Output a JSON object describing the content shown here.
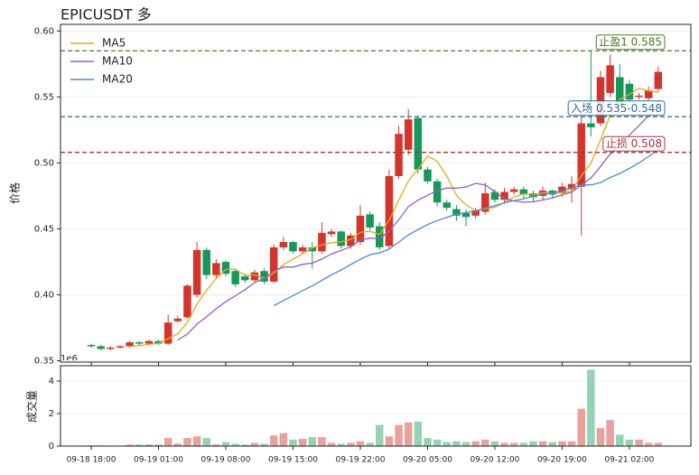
{
  "chart_data": {
    "type": "candlestick",
    "title": "EPICUSDT 多",
    "ylabel": "价格",
    "volume_ylabel": "成交量",
    "volume_offset": "1e6",
    "categories": [
      "09-18 18:00",
      null,
      null,
      null,
      null,
      null,
      null,
      "09-19 01:00",
      null,
      null,
      null,
      null,
      null,
      null,
      "09-19 08:00",
      null,
      null,
      null,
      null,
      null,
      null,
      "09-19 15:00",
      null,
      null,
      null,
      null,
      null,
      null,
      "09-19 22:00",
      null,
      null,
      null,
      null,
      null,
      null,
      "09-20 05:00",
      null,
      null,
      null,
      null,
      null,
      null,
      "09-20 12:00",
      null,
      null,
      null,
      null,
      null,
      null,
      "09-20 19:00",
      null,
      null,
      null,
      null,
      null,
      null,
      "09-21 02:00",
      null,
      null,
      null
    ],
    "xlim": [
      -3.2,
      62.4
    ],
    "open": [
      0.362,
      0.361,
      0.359,
      0.36,
      0.361,
      0.364,
      0.363,
      0.365,
      0.363,
      0.38,
      0.383,
      0.4,
      0.434,
      0.415,
      0.425,
      0.418,
      0.414,
      0.411,
      0.418,
      0.41,
      0.436,
      0.44,
      0.433,
      0.436,
      0.433,
      0.446,
      0.448,
      0.437,
      0.44,
      0.461,
      0.452,
      0.437,
      0.49,
      0.51,
      0.534,
      0.495,
      0.486,
      0.47,
      0.465,
      0.462,
      0.46,
      0.463,
      0.478,
      0.472,
      0.478,
      0.48,
      0.477,
      0.475,
      0.479,
      0.477,
      0.48,
      0.482,
      0.53,
      0.53,
      0.553,
      0.565,
      0.56,
      0.55,
      0.549,
      0.556
    ],
    "high": [
      0.363,
      0.362,
      0.361,
      0.362,
      0.365,
      0.365,
      0.366,
      0.366,
      0.385,
      0.384,
      0.408,
      0.44,
      0.436,
      0.427,
      0.426,
      0.42,
      0.416,
      0.419,
      0.42,
      0.438,
      0.444,
      0.441,
      0.438,
      0.44,
      0.455,
      0.45,
      0.449,
      0.447,
      0.468,
      0.463,
      0.455,
      0.495,
      0.528,
      0.541,
      0.536,
      0.497,
      0.488,
      0.472,
      0.468,
      0.465,
      0.466,
      0.485,
      0.48,
      0.481,
      0.482,
      0.482,
      0.479,
      0.482,
      0.48,
      0.485,
      0.49,
      0.54,
      0.585,
      0.57,
      0.582,
      0.575,
      0.563,
      0.553,
      0.558,
      0.573
    ],
    "low": [
      0.36,
      0.358,
      0.358,
      0.359,
      0.36,
      0.361,
      0.362,
      0.362,
      0.362,
      0.379,
      0.382,
      0.398,
      0.412,
      0.412,
      0.414,
      0.406,
      0.409,
      0.409,
      0.408,
      0.409,
      0.434,
      0.431,
      0.431,
      0.42,
      0.431,
      0.444,
      0.435,
      0.435,
      0.438,
      0.449,
      0.434,
      0.435,
      0.488,
      0.506,
      0.492,
      0.484,
      0.467,
      0.464,
      0.456,
      0.452,
      0.458,
      0.461,
      0.47,
      0.469,
      0.476,
      0.473,
      0.47,
      0.472,
      0.473,
      0.474,
      0.47,
      0.445,
      0.52,
      0.528,
      0.55,
      0.54,
      0.545,
      0.548,
      0.547,
      0.554
    ],
    "close": [
      0.361,
      0.359,
      0.36,
      0.361,
      0.364,
      0.363,
      0.365,
      0.363,
      0.379,
      0.382,
      0.407,
      0.434,
      0.415,
      0.424,
      0.416,
      0.408,
      0.411,
      0.417,
      0.41,
      0.436,
      0.44,
      0.433,
      0.436,
      0.433,
      0.447,
      0.448,
      0.437,
      0.445,
      0.46,
      0.451,
      0.436,
      0.49,
      0.522,
      0.533,
      0.495,
      0.486,
      0.47,
      0.466,
      0.46,
      0.459,
      0.464,
      0.477,
      0.472,
      0.478,
      0.48,
      0.476,
      0.474,
      0.479,
      0.476,
      0.482,
      0.484,
      0.53,
      0.527,
      0.565,
      0.574,
      0.545,
      0.548,
      0.551,
      0.555,
      0.569
    ],
    "volume": [
      0.05,
      0.05,
      0.02,
      0.02,
      0.1,
      0.1,
      0.1,
      0.1,
      0.5,
      0.15,
      0.5,
      0.6,
      0.5,
      0.1,
      0.25,
      0.15,
      0.1,
      0.2,
      0.15,
      0.65,
      0.8,
      0.4,
      0.45,
      0.55,
      0.55,
      0.2,
      0.15,
      0.2,
      0.3,
      0.2,
      1.3,
      0.6,
      1.3,
      1.45,
      1.5,
      0.5,
      0.4,
      0.25,
      0.3,
      0.25,
      0.3,
      0.4,
      0.3,
      0.2,
      0.2,
      0.2,
      0.3,
      0.3,
      0.25,
      0.3,
      0.3,
      2.3,
      4.7,
      1.1,
      1.6,
      0.7,
      0.4,
      0.4,
      0.2,
      0.2
    ],
    "up_color": "#d3352c",
    "down_color": "#15995a",
    "volume_up_color": "#e8a29d",
    "volume_down_color": "#96d3b5",
    "ylim": [
      0.349,
      0.605
    ],
    "yticks": [
      0.35,
      {
        "value": 0.4,
        "label": "0.40"
      },
      0.45,
      {
        "value": 0.5,
        "label": "0.50"
      },
      0.55,
      {
        "value": 0.6,
        "label": "0.60"
      }
    ],
    "volume_ylim": [
      0,
      4.94
    ],
    "volume_yticks": [
      0,
      2,
      4
    ],
    "moving_averages": [
      {
        "name": "MA5",
        "window": 5,
        "color": "#e5a915"
      },
      {
        "name": "MA10",
        "window": 10,
        "color": "#9060c0"
      },
      {
        "name": "MA20",
        "window": 20,
        "color": "#4a8ccc"
      }
    ],
    "levels": [
      {
        "value": 0.585,
        "label": "止盈1 0.585",
        "color": "#4a7a26"
      },
      {
        "value": 0.535,
        "label": "入场 0.535-0.548",
        "color": "#2f6b9a"
      },
      {
        "value": 0.508,
        "label": "止损 0.508",
        "color": "#a8343f"
      }
    ],
    "legend": "upper left",
    "grid": true
  }
}
